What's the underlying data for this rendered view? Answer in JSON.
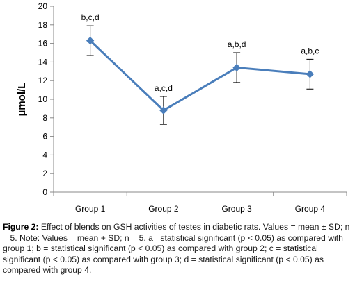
{
  "chart_data": {
    "type": "line",
    "categories": [
      "Group 1",
      "Group 2",
      "Group 3",
      "Group 4"
    ],
    "series": [
      {
        "values": [
          16.3,
          8.8,
          13.4,
          12.7
        ],
        "error": [
          1.6,
          1.5,
          1.6,
          1.6
        ],
        "annotations": [
          "b,c,d",
          "a,c,d",
          "a,b,d",
          "a,b,c"
        ]
      }
    ],
    "ylabel": "µmol/L",
    "ylim": [
      0,
      20
    ],
    "yticks": [
      0,
      2,
      4,
      6,
      8,
      10,
      12,
      14,
      16,
      18,
      20
    ],
    "grid": false,
    "line_color": "#4a7ebb"
  },
  "caption": {
    "label": "Figure 2:",
    "text": " Effect of blends on GSH activities of testes in diabetic rats. Values = mean ± SD; n = 5. Note: Values = mean + SD; n = 5. a= statistical significant (p < 0.05) as compared with group 1; b = statistical significant (p < 0.05) as compared with group 2; c = statistical significant (p < 0.05) as compared with group 3; d = statistical significant (p < 0.05) as compared with group 4."
  }
}
